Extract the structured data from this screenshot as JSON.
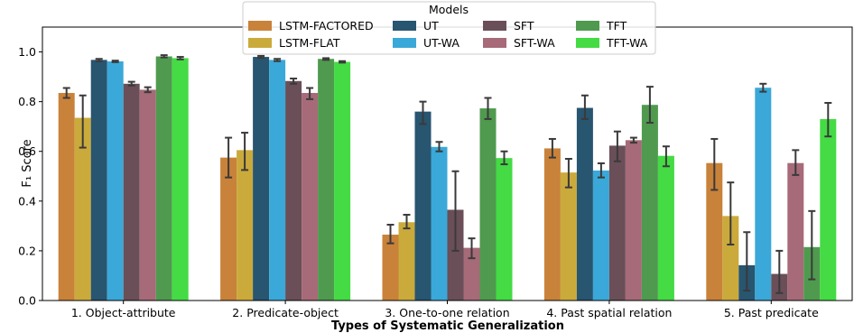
{
  "chart_data": {
    "type": "bar",
    "title": "",
    "xlabel": "Types of Systematic Generalization",
    "ylabel": "F₁ Score",
    "ylim": [
      0,
      1.1
    ],
    "yticks": [
      0.0,
      0.2,
      0.4,
      0.6,
      0.8,
      1.0
    ],
    "ytick_labels": [
      "0.0",
      "0.2",
      "0.4",
      "0.6",
      "0.8",
      "1.0"
    ],
    "grid": false,
    "legend": {
      "title": "Models",
      "placement": "top-center",
      "columns": 4
    },
    "categories": [
      "1. Object-attribute",
      "2. Predicate-object",
      "3. One-to-one relation",
      "4. Past spatial relation",
      "5. Past predicate"
    ],
    "series": [
      {
        "name": "LSTM-FACTORED",
        "color": "#c9823a",
        "values": [
          0.835,
          0.575,
          0.265,
          0.612,
          0.553
        ],
        "err_low": [
          0.815,
          0.495,
          0.23,
          0.575,
          0.445
        ],
        "err_high": [
          0.855,
          0.655,
          0.305,
          0.65,
          0.65
        ]
      },
      {
        "name": "LSTM-FLAT",
        "color": "#cbaa3c",
        "values": [
          0.735,
          0.605,
          0.315,
          0.515,
          0.34
        ],
        "err_low": [
          0.615,
          0.525,
          0.29,
          0.455,
          0.225
        ],
        "err_high": [
          0.825,
          0.675,
          0.345,
          0.57,
          0.475
        ]
      },
      {
        "name": "UT",
        "color": "#285570",
        "values": [
          0.968,
          0.98,
          0.76,
          0.775,
          0.142
        ],
        "err_low": [
          0.963,
          0.976,
          0.71,
          0.73,
          0.04
        ],
        "err_high": [
          0.972,
          0.984,
          0.8,
          0.825,
          0.275
        ]
      },
      {
        "name": "UT-WA",
        "color": "#3aa8d8",
        "values": [
          0.962,
          0.968,
          0.618,
          0.523,
          0.856
        ],
        "err_low": [
          0.959,
          0.963,
          0.6,
          0.495,
          0.84
        ],
        "err_high": [
          0.965,
          0.972,
          0.638,
          0.552,
          0.872
        ]
      },
      {
        "name": "SFT",
        "color": "#6a4f58",
        "values": [
          0.872,
          0.883,
          0.365,
          0.623,
          0.107
        ],
        "err_low": [
          0.865,
          0.872,
          0.2,
          0.56,
          0.03
        ],
        "err_high": [
          0.88,
          0.893,
          0.52,
          0.68,
          0.2
        ]
      },
      {
        "name": "SFT-WA",
        "color": "#a66a78",
        "values": [
          0.848,
          0.835,
          0.212,
          0.645,
          0.553
        ],
        "err_low": [
          0.838,
          0.81,
          0.17,
          0.635,
          0.505
        ],
        "err_high": [
          0.858,
          0.855,
          0.25,
          0.655,
          0.605
        ]
      },
      {
        "name": "TFT",
        "color": "#4f9a4f",
        "values": [
          0.982,
          0.972,
          0.773,
          0.787,
          0.215
        ],
        "err_low": [
          0.978,
          0.968,
          0.73,
          0.715,
          0.085
        ],
        "err_high": [
          0.987,
          0.975,
          0.815,
          0.86,
          0.36
        ]
      },
      {
        "name": "TFT-WA",
        "color": "#44db44",
        "values": [
          0.975,
          0.96,
          0.573,
          0.582,
          0.73
        ],
        "err_low": [
          0.97,
          0.957,
          0.548,
          0.54,
          0.66
        ],
        "err_high": [
          0.98,
          0.963,
          0.6,
          0.62,
          0.795
        ]
      }
    ]
  }
}
